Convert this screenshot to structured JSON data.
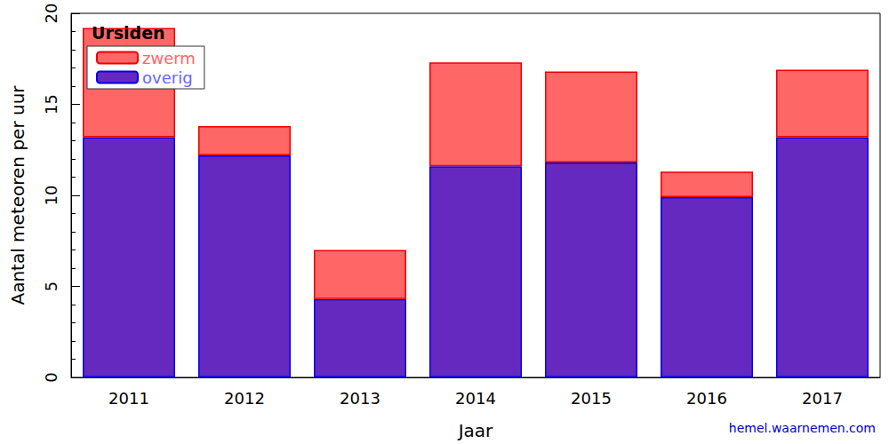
{
  "chart_data": {
    "type": "bar",
    "title": "Ursiden",
    "x_label": "Jaar",
    "y_label": "Aantal meteoren per uur",
    "source": "hemel.waarnemen.com",
    "categories": [
      "2011",
      "2012",
      "2013",
      "2014",
      "2015",
      "2016",
      "2017"
    ],
    "series": [
      {
        "name": "zwerm",
        "color": "#ff6666",
        "values": [
          6.0,
          1.6,
          2.7,
          5.7,
          5.0,
          1.4,
          3.7
        ]
      },
      {
        "name": "overig",
        "color": "#6629c0",
        "values": [
          13.2,
          12.2,
          4.3,
          11.6,
          11.8,
          9.9,
          13.2
        ]
      }
    ],
    "stacked": true,
    "ylim": [
      0,
      20
    ],
    "yticks": [
      0,
      5,
      10,
      15,
      20
    ],
    "grid": false,
    "legend": "top-left"
  }
}
